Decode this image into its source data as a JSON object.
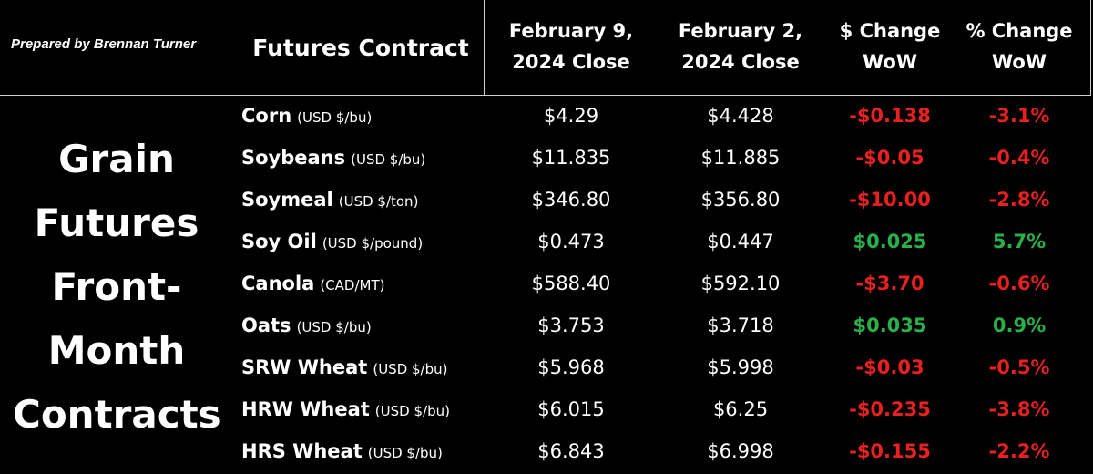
{
  "credit": "Prepared by Brennan Turner",
  "side_title": [
    "Grain",
    "Futures",
    "Front-",
    "Month",
    "Contracts"
  ],
  "headers": {
    "contract": "Futures Contract",
    "close1": [
      "February 9,",
      "2024 Close"
    ],
    "close2": [
      "February 2,",
      "2024 Close"
    ],
    "dollar_change": [
      "$ Change",
      "WoW"
    ],
    "pct_change": [
      "% Change",
      "WoW"
    ]
  },
  "colors": {
    "negative": "#e82020",
    "positive": "#2ab04a",
    "background": "#000000",
    "text": "#ffffff"
  },
  "chart_data": {
    "type": "table",
    "columns": [
      "Futures Contract",
      "February 9, 2024 Close",
      "February 2, 2024 Close",
      "$ Change WoW",
      "% Change WoW"
    ],
    "rows": [
      {
        "name": "Corn",
        "unit": "(USD $/bu)",
        "feb9": "$4.29",
        "feb2": "$4.428",
        "dchange": "-$0.138",
        "pchange": "-3.1%",
        "dir": "neg"
      },
      {
        "name": "Soybeans",
        "unit": "(USD $/bu)",
        "feb9": "$11.835",
        "feb2": "$11.885",
        "dchange": "-$0.05",
        "pchange": "-0.4%",
        "dir": "neg"
      },
      {
        "name": "Soymeal",
        "unit": "(USD $/ton)",
        "feb9": "$346.80",
        "feb2": "$356.80",
        "dchange": "-$10.00",
        "pchange": "-2.8%",
        "dir": "neg"
      },
      {
        "name": "Soy Oil",
        "unit": "(USD $/pound)",
        "feb9": "$0.473",
        "feb2": "$0.447",
        "dchange": "$0.025",
        "pchange": "5.7%",
        "dir": "pos"
      },
      {
        "name": "Canola",
        "unit": "(CAD/MT)",
        "feb9": "$588.40",
        "feb2": "$592.10",
        "dchange": "-$3.70",
        "pchange": "-0.6%",
        "dir": "neg"
      },
      {
        "name": "Oats",
        "unit": "(USD $/bu)",
        "feb9": "$3.753",
        "feb2": "$3.718",
        "dchange": "$0.035",
        "pchange": "0.9%",
        "dir": "pos"
      },
      {
        "name": "SRW Wheat",
        "unit": "(USD $/bu)",
        "feb9": "$5.968",
        "feb2": "$5.998",
        "dchange": "-$0.03",
        "pchange": "-0.5%",
        "dir": "neg"
      },
      {
        "name": "HRW Wheat",
        "unit": "(USD $/bu)",
        "feb9": "$6.015",
        "feb2": "$6.25",
        "dchange": "-$0.235",
        "pchange": "-3.8%",
        "dir": "neg"
      },
      {
        "name": "HRS Wheat",
        "unit": "(USD $/bu)",
        "feb9": "$6.843",
        "feb2": "$6.998",
        "dchange": "-$0.155",
        "pchange": "-2.2%",
        "dir": "neg"
      }
    ]
  }
}
